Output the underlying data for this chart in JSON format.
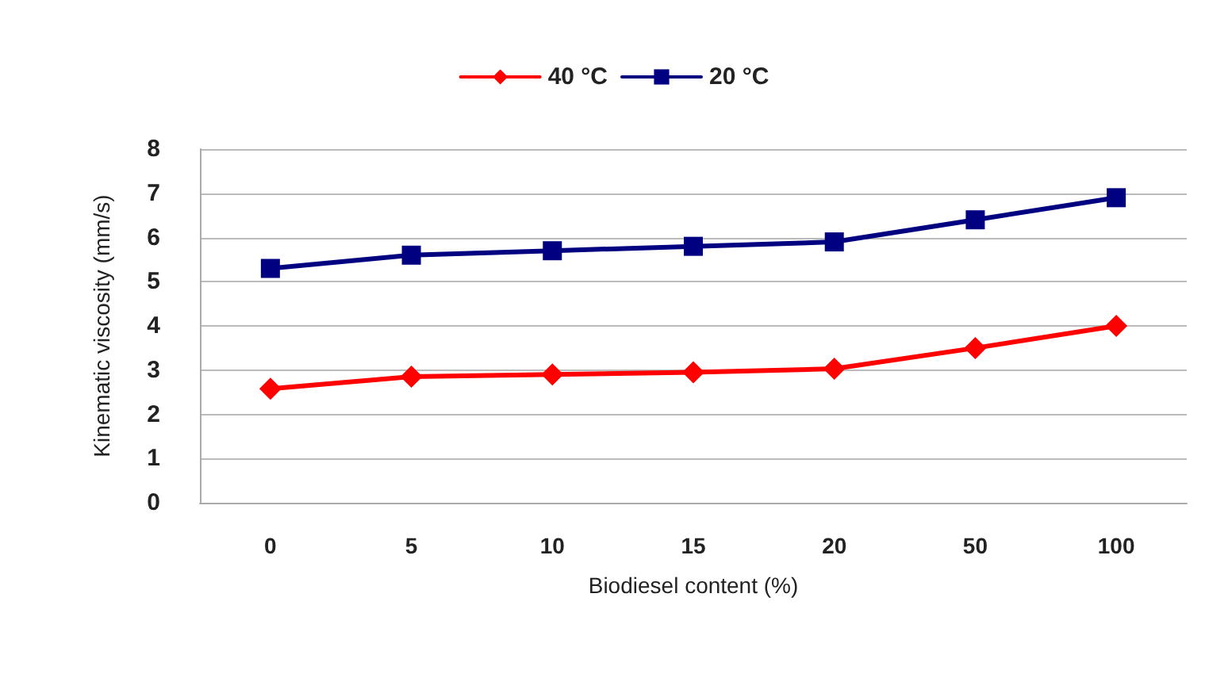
{
  "chart_data": {
    "type": "line",
    "xlabel": "Biodiesel content (%)",
    "ylabel": "Kinematic viscosity (mm/s)",
    "categories": [
      "0",
      "5",
      "10",
      "15",
      "20",
      "50",
      "100"
    ],
    "series": [
      {
        "name": "40 °C",
        "color": "#ff0000",
        "marker": "diamond",
        "values": [
          2.58,
          2.85,
          2.9,
          2.95,
          3.03,
          3.5,
          4.0
        ]
      },
      {
        "name": "20 °C",
        "color": "#000080",
        "marker": "square",
        "values": [
          5.3,
          5.6,
          5.7,
          5.8,
          5.9,
          6.4,
          6.9
        ]
      }
    ],
    "ylim": [
      0,
      8
    ],
    "yticks": [
      0,
      1,
      2,
      3,
      4,
      5,
      6,
      7,
      8
    ],
    "grid": "y",
    "legend": "top"
  }
}
